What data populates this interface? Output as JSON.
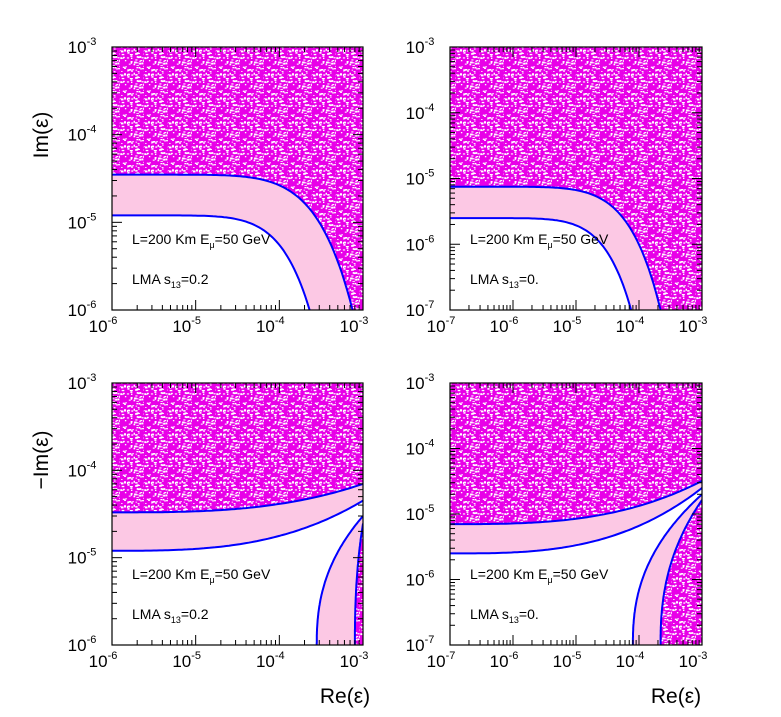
{
  "colors": {
    "excluded_fill": "#e800e8",
    "excluded_speckle": "#ffffff",
    "band_fill": "#fcc8e4",
    "contour": "#0000ff",
    "axis": "#000000",
    "background": "#ffffff"
  },
  "chart_data": [
    {
      "type": "area",
      "panel": "top-left",
      "x_scale": "log",
      "y_scale": "log",
      "xlim": [
        1e-06,
        0.001
      ],
      "ylim": [
        1e-06,
        0.001
      ],
      "x_ticks": [
        {
          "base": "10",
          "exp": "-6"
        },
        {
          "base": "10",
          "exp": "-5"
        },
        {
          "base": "10",
          "exp": "-4"
        },
        {
          "base": "10",
          "exp": "-3"
        }
      ],
      "y_ticks": [
        {
          "base": "10",
          "exp": "-6"
        },
        {
          "base": "10",
          "exp": "-5"
        },
        {
          "base": "10",
          "exp": "-4"
        },
        {
          "base": "10",
          "exp": "-3"
        }
      ],
      "ylabel": "Im(ε)",
      "xlabel": "",
      "annotation": {
        "line1_main": "L=200 Km E",
        "line1_sub": "μ",
        "line1_end": "=50 GeV",
        "line2_main": "LMA s",
        "line2_sub": "13",
        "line2_end": "=0.2"
      },
      "contours": {
        "outer": {
          "y_plateau": 3.5e-05,
          "x_vertical": 0.00075
        },
        "inner": {
          "y_plateau": 1.2e-05,
          "x_vertical": 0.00023
        }
      }
    },
    {
      "type": "area",
      "panel": "top-right",
      "x_scale": "log",
      "y_scale": "log",
      "xlim": [
        1e-07,
        0.001
      ],
      "ylim": [
        1e-07,
        0.001
      ],
      "x_ticks": [
        {
          "base": "10",
          "exp": "-7"
        },
        {
          "base": "10",
          "exp": "-6"
        },
        {
          "base": "10",
          "exp": "-5"
        },
        {
          "base": "10",
          "exp": "-4"
        },
        {
          "base": "10",
          "exp": "-3"
        }
      ],
      "y_ticks": [
        {
          "base": "10",
          "exp": "-7"
        },
        {
          "base": "10",
          "exp": "-6"
        },
        {
          "base": "10",
          "exp": "-5"
        },
        {
          "base": "10",
          "exp": "-4"
        },
        {
          "base": "10",
          "exp": "-3"
        }
      ],
      "ylabel": "",
      "xlabel": "",
      "annotation": {
        "line1_main": "L=200 Km E",
        "line1_sub": "μ",
        "line1_end": "=50 GeV",
        "line2_main": "LMA s",
        "line2_sub": "13",
        "line2_end": "=0."
      },
      "contours": {
        "outer": {
          "y_plateau": 7.5e-06,
          "x_vertical": 0.00022
        },
        "inner": {
          "y_plateau": 2.5e-06,
          "x_vertical": 7.5e-05
        }
      }
    },
    {
      "type": "area",
      "panel": "bottom-left",
      "x_scale": "log",
      "y_scale": "log",
      "xlim": [
        1e-06,
        0.001
      ],
      "ylim": [
        1e-06,
        0.001
      ],
      "x_ticks": [
        {
          "base": "10",
          "exp": "-6"
        },
        {
          "base": "10",
          "exp": "-5"
        },
        {
          "base": "10",
          "exp": "-4"
        },
        {
          "base": "10",
          "exp": "-3"
        }
      ],
      "y_ticks": [
        {
          "base": "10",
          "exp": "-6"
        },
        {
          "base": "10",
          "exp": "-5"
        },
        {
          "base": "10",
          "exp": "-4"
        },
        {
          "base": "10",
          "exp": "-3"
        }
      ],
      "ylabel": "−Im(ε)",
      "xlabel": "Re(ε)",
      "annotation": {
        "line1_main": "L=200 Km E",
        "line1_sub": "μ",
        "line1_end": "=50 GeV",
        "line2_main": "LMA s",
        "line2_sub": "13",
        "line2_end": "=0.2"
      },
      "contours": {
        "outer": {
          "y_plateau": 3.3e-05,
          "y_at_xmax": 7e-05
        },
        "inner": {
          "y_plateau": 1.2e-05,
          "y_at_xmax": 4.5e-05
        },
        "right_band": {
          "outer_x_bottom": 0.00028,
          "inner_x_bottom": 0.0008,
          "y_at_xmax": 3e-05
        }
      }
    },
    {
      "type": "area",
      "panel": "bottom-right",
      "x_scale": "log",
      "y_scale": "log",
      "xlim": [
        1e-07,
        0.001
      ],
      "ylim": [
        1e-07,
        0.001
      ],
      "x_ticks": [
        {
          "base": "10",
          "exp": "-7"
        },
        {
          "base": "10",
          "exp": "-6"
        },
        {
          "base": "10",
          "exp": "-5"
        },
        {
          "base": "10",
          "exp": "-4"
        },
        {
          "base": "10",
          "exp": "-3"
        }
      ],
      "y_ticks": [
        {
          "base": "10",
          "exp": "-7"
        },
        {
          "base": "10",
          "exp": "-6"
        },
        {
          "base": "10",
          "exp": "-5"
        },
        {
          "base": "10",
          "exp": "-4"
        },
        {
          "base": "10",
          "exp": "-3"
        }
      ],
      "ylabel": "",
      "xlabel": "Re(ε)",
      "annotation": {
        "line1_main": "L=200 Km E",
        "line1_sub": "μ",
        "line1_end": "=50 GeV",
        "line2_main": "LMA s",
        "line2_sub": "13",
        "line2_end": "=0."
      },
      "contours": {
        "outer": {
          "y_plateau": 7e-06,
          "y_at_xmax": 3.2e-05
        },
        "inner": {
          "y_plateau": 2.5e-06,
          "y_at_xmax": 2.5e-05
        },
        "right_band": {
          "outer_x_bottom": 8e-05,
          "inner_x_bottom": 0.00022,
          "y_at_xmax": 2e-05
        }
      }
    }
  ]
}
